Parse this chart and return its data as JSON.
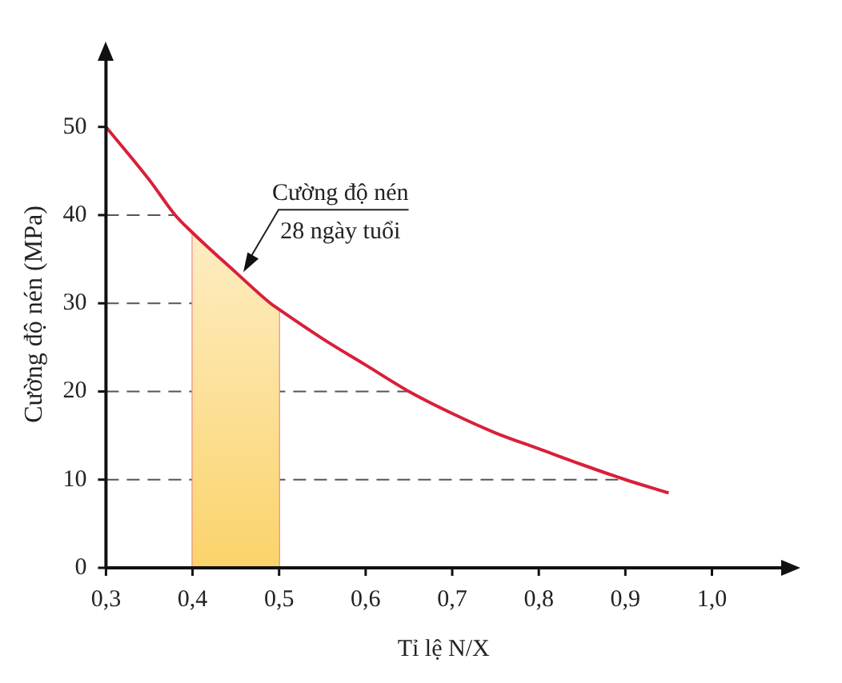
{
  "chart_data": {
    "type": "line",
    "xlabel": "Tỉ lệ N/X",
    "ylabel": "Cường độ nén (MPa)",
    "x": [
      0.3,
      0.35,
      0.38,
      0.4,
      0.45,
      0.49,
      0.5,
      0.55,
      0.6,
      0.65,
      0.7,
      0.75,
      0.8,
      0.85,
      0.9,
      0.95
    ],
    "series": [
      {
        "color": "#d8203a",
        "values": [
          50,
          44,
          40,
          38,
          33.5,
          30,
          29.3,
          26,
          23,
          20,
          17.5,
          15.3,
          13.5,
          11.7,
          10,
          8.5
        ]
      }
    ],
    "xlim": [
      0.3,
      1.08
    ],
    "ylim": [
      0,
      57.5
    ],
    "xticks": [
      {
        "value": 0.3,
        "label": "0,3"
      },
      {
        "value": 0.4,
        "label": "0,4"
      },
      {
        "value": 0.5,
        "label": "0,5"
      },
      {
        "value": 0.6,
        "label": "0,6"
      },
      {
        "value": 0.7,
        "label": "0,7"
      },
      {
        "value": 0.8,
        "label": "0,8"
      },
      {
        "value": 0.9,
        "label": "0,9"
      },
      {
        "value": 1.0,
        "label": "1,0"
      }
    ],
    "yticks": [
      0,
      10,
      20,
      30,
      40,
      50
    ],
    "marker": "none",
    "line_style": "solid",
    "legend": false,
    "ref_lines": [
      {
        "axis": "y",
        "value": 10,
        "color": "#555555",
        "line_style": "dashed"
      },
      {
        "axis": "y",
        "value": 20,
        "color": "#555555",
        "line_style": "dashed"
      },
      {
        "axis": "y",
        "value": 30,
        "color": "#555555",
        "line_style": "dashed"
      },
      {
        "axis": "y",
        "value": 40,
        "color": "#555555",
        "line_style": "dashed"
      },
      {
        "axis": "x",
        "value": 0.4,
        "color": "#f08a8a",
        "line_style": "solid"
      },
      {
        "axis": "x",
        "value": 0.5,
        "color": "#f08a8a",
        "line_style": "solid"
      }
    ],
    "bands": [
      {
        "axis": "x",
        "from": 0.4,
        "to": 0.5,
        "color": "#fbd36b"
      }
    ],
    "annotations": [
      {
        "text": "Cường độ nén 28 ngày tuổi",
        "x": 0.455,
        "y": 33
      }
    ]
  }
}
